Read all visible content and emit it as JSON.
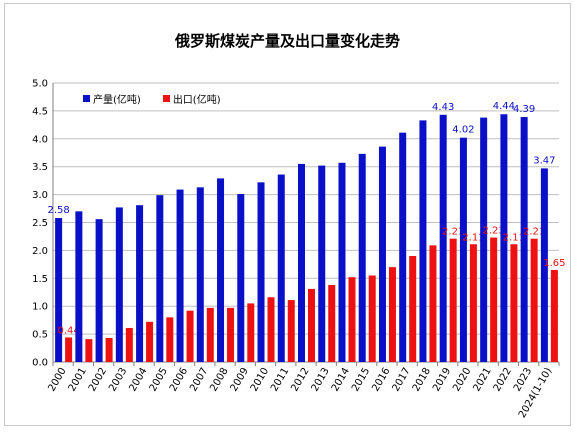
{
  "chart_data": {
    "type": "bar",
    "title": "俄罗斯煤炭产量及出口量变化走势",
    "categories": [
      "2000",
      "2001",
      "2002",
      "2003",
      "2004",
      "2005",
      "2006",
      "2007",
      "2008",
      "2009",
      "2010",
      "2011",
      "2012",
      "2013",
      "2014",
      "2015",
      "2016",
      "2017",
      "2018",
      "2019",
      "2020",
      "2021",
      "2022",
      "2023",
      "2024(1-10)"
    ],
    "series": [
      {
        "name": "产量(亿吨)",
        "color": "#0a10c8",
        "values": [
          2.58,
          2.7,
          2.56,
          2.77,
          2.81,
          2.99,
          3.09,
          3.13,
          3.29,
          3.01,
          3.22,
          3.36,
          3.55,
          3.52,
          3.57,
          3.73,
          3.86,
          4.11,
          4.33,
          4.43,
          4.02,
          4.38,
          4.44,
          4.39,
          3.47
        ],
        "labels": [
          "2.58",
          "",
          "",
          "",
          "",
          "",
          "",
          "",
          "",
          "",
          "",
          "",
          "",
          "",
          "",
          "",
          "",
          "",
          "",
          "4.43",
          "4.02",
          "",
          "4.44",
          "4.39",
          "3.47"
        ]
      },
      {
        "name": "出口(亿吨)",
        "color": "#ee1111",
        "values": [
          0.44,
          0.41,
          0.43,
          0.61,
          0.72,
          0.8,
          0.92,
          0.97,
          0.97,
          1.05,
          1.16,
          1.11,
          1.31,
          1.38,
          1.52,
          1.55,
          1.7,
          1.9,
          2.09,
          2.21,
          2.11,
          2.23,
          2.11,
          2.21,
          1.65
        ],
        "labels": [
          "0.44",
          "",
          "",
          "",
          "",
          "",
          "",
          "",
          "",
          "",
          "",
          "",
          "",
          "",
          "",
          "",
          "",
          "",
          "",
          "2.21",
          "2.11",
          "2.23",
          "2.11",
          "2.21",
          "1.65"
        ]
      }
    ],
    "ylim": [
      0,
      5
    ],
    "yticks": [
      "0.0",
      "0.5",
      "1.0",
      "1.5",
      "2.0",
      "2.5",
      "3.0",
      "3.5",
      "4.0",
      "4.5",
      "5.0"
    ],
    "grid": true,
    "legend_position": "top-left"
  }
}
